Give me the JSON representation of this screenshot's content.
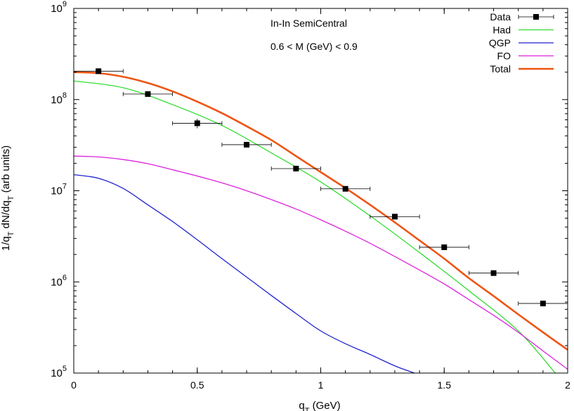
{
  "chart_data": {
    "type": "line",
    "title": "",
    "annotations": [
      "In-In SemiCentral",
      "0.6 < M (GeV) < 0.9"
    ],
    "xlabel": {
      "main": "q",
      "sub": "T",
      "rest": " (GeV)"
    },
    "ylabel": {
      "p1": "1/q",
      "s1": "T",
      "p2": " dN/dq",
      "s2": "T",
      "p3": " (arb units)"
    },
    "xlim": [
      0,
      2
    ],
    "ylim": [
      100000,
      1000000000
    ],
    "yscale": "log",
    "grid": false,
    "legend_position": "top-right",
    "x_ticks": [
      {
        "value": 0,
        "label": "0"
      },
      {
        "value": 0.5,
        "label": "0.5"
      },
      {
        "value": 1,
        "label": "1"
      },
      {
        "value": 1.5,
        "label": "1.5"
      },
      {
        "value": 2,
        "label": "2"
      }
    ],
    "y_ticks": [
      {
        "value": 100000,
        "base": "10",
        "exp": "5"
      },
      {
        "value": 1000000,
        "base": "10",
        "exp": "6"
      },
      {
        "value": 10000000,
        "base": "10",
        "exp": "7"
      },
      {
        "value": 100000000,
        "base": "10",
        "exp": "8"
      },
      {
        "value": 1000000000,
        "base": "10",
        "exp": "9"
      }
    ],
    "data_points": {
      "name": "Data",
      "x": [
        0.1,
        0.3,
        0.5,
        0.7,
        0.9,
        1.1,
        1.3,
        1.5,
        1.7,
        1.9
      ],
      "y": [
        205000000,
        115000000,
        55000000,
        32000000,
        17500000,
        10500000,
        5200000,
        2400000,
        1250000,
        580000
      ],
      "xerr": 0.1,
      "yerr_rel": [
        0.05,
        0.05,
        0.12,
        0.05,
        0.05,
        0.05,
        0.05,
        0.05,
        0.05,
        0.05
      ]
    },
    "series": [
      {
        "name": "Had",
        "color": "#33dd33",
        "stroke": 1.3,
        "x": [
          0,
          0.2,
          0.4,
          0.6,
          0.8,
          1.0,
          1.2,
          1.4,
          1.6,
          1.8,
          1.95
        ],
        "y": [
          160000000,
          135000000,
          88000000,
          52000000,
          26000000,
          12500000,
          5300000,
          2100000,
          800000,
          290000,
          100000
        ]
      },
      {
        "name": "QGP",
        "color": "#2222cc",
        "stroke": 1.3,
        "x": [
          0,
          0.1,
          0.2,
          0.3,
          0.4,
          0.5,
          0.6,
          0.7,
          0.8,
          0.9,
          1.0,
          1.1,
          1.2,
          1.3,
          1.38
        ],
        "y": [
          15000000,
          13700000,
          10600000,
          7000000,
          4600000,
          2900000,
          1800000,
          1130000,
          710000,
          450000,
          290000,
          210000,
          160000,
          120000,
          100000
        ]
      },
      {
        "name": "FO",
        "color": "#dd22dd",
        "stroke": 1.3,
        "x": [
          0,
          0.1,
          0.2,
          0.3,
          0.4,
          0.5,
          0.6,
          0.7,
          0.8,
          0.9,
          1.0,
          1.1,
          1.2,
          1.3,
          1.4,
          1.5,
          1.6,
          1.7,
          1.8,
          1.9,
          2.0
        ],
        "y": [
          24000000,
          23500000,
          22000000,
          19800000,
          17000000,
          14500000,
          12200000,
          10000000,
          8000000,
          6300000,
          4800000,
          3600000,
          2650000,
          1900000,
          1350000,
          950000,
          640000,
          430000,
          280000,
          175000,
          110000
        ]
      },
      {
        "name": "Total",
        "color": "#ee5511",
        "stroke": 2.6,
        "x": [
          0,
          0.1,
          0.2,
          0.3,
          0.4,
          0.5,
          0.6,
          0.7,
          0.8,
          0.9,
          1.0,
          1.1,
          1.2,
          1.3,
          1.4,
          1.5,
          1.6,
          1.7,
          1.8,
          1.9,
          2.0
        ],
        "y": [
          200000000,
          195000000,
          178000000,
          152000000,
          123000000,
          95000000,
          71000000,
          51000000,
          36000000,
          24000000,
          16000000,
          10700000,
          7000000,
          4500000,
          2850000,
          1800000,
          1100000,
          700000,
          440000,
          280000,
          180000
        ]
      }
    ]
  }
}
